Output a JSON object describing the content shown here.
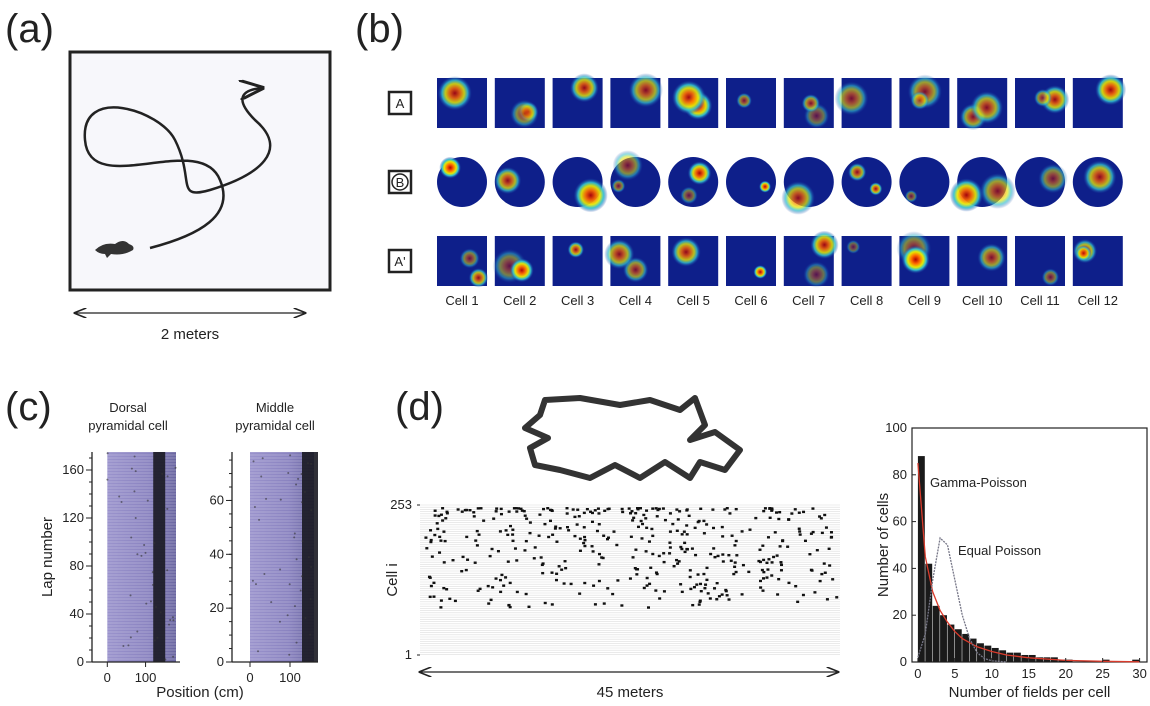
{
  "panels": {
    "a": {
      "label": "(a)",
      "scale": "2 meters"
    },
    "b": {
      "label": "(b)",
      "rows": [
        "A",
        "B",
        "A'"
      ],
      "cells": [
        "Cell 1",
        "Cell 2",
        "Cell 3",
        "Cell 4",
        "Cell 5",
        "Cell 6",
        "Cell 7",
        "Cell 8",
        "Cell 9",
        "Cell 10",
        "Cell 11",
        "Cell 12"
      ]
    },
    "c": {
      "label": "(c)",
      "xlabel": "Position (cm)"
    },
    "d": {
      "label": "(d)",
      "scale": "45 meters"
    }
  },
  "chart_data": [
    {
      "type": "raster",
      "title_lines": [
        "Dorsal",
        "pyramidal cell"
      ],
      "ylabel": "Lap number",
      "xlim": [
        -40,
        190
      ],
      "ylim": [
        0,
        175
      ],
      "xticks": [
        0,
        100
      ],
      "yticks": [
        0,
        40,
        80,
        120,
        160
      ]
    },
    {
      "type": "raster",
      "title_lines": [
        "Middle",
        "pyramidal cell"
      ],
      "xlim": [
        -45,
        170
      ],
      "ylim": [
        0,
        78
      ],
      "xticks": [
        0,
        100
      ],
      "yticks": [
        0,
        20,
        40,
        60
      ]
    },
    {
      "type": "raster",
      "ylabel": "Cell i",
      "ylim": [
        1,
        253
      ],
      "yticks": [
        1,
        253
      ]
    },
    {
      "type": "histogram",
      "xlabel": "Number of fields per cell",
      "ylabel": "Number of cells",
      "bins": [
        0,
        1,
        2,
        3,
        4,
        5,
        6,
        7,
        8,
        9,
        10,
        11,
        12,
        13,
        14,
        15,
        16,
        17,
        18,
        19,
        20,
        21,
        22,
        23,
        24,
        25,
        26,
        27,
        28,
        29,
        30,
        31
      ],
      "values": [
        88,
        42,
        24,
        20,
        16,
        14,
        12,
        10,
        8,
        7,
        6,
        5,
        4,
        4,
        3,
        3,
        2,
        2,
        2,
        1,
        1,
        0,
        0,
        0,
        0,
        1,
        0,
        0,
        0,
        1,
        0
      ],
      "color": "#1a1a1a",
      "series": [
        {
          "name": "Gamma-Poisson",
          "color": "#d93a2b",
          "x": [
            0,
            1,
            2,
            3,
            4,
            5,
            6,
            8,
            10,
            12,
            15,
            20,
            25,
            30
          ],
          "values": [
            85,
            45,
            30,
            22,
            17,
            13,
            10,
            6.5,
            4.5,
            3,
            1.8,
            0.7,
            0.3,
            0.1
          ]
        },
        {
          "name": "Equal Poisson",
          "color": "#777788",
          "x": [
            0,
            1,
            2,
            3,
            4,
            5,
            6,
            7,
            8,
            9,
            10,
            12
          ],
          "values": [
            2,
            12,
            35,
            53,
            50,
            35,
            20,
            10,
            4,
            1.5,
            0.5,
            0
          ]
        }
      ],
      "xlim": [
        -0.8,
        31
      ],
      "ylim": [
        0,
        100
      ],
      "xticks": [
        0,
        5,
        10,
        15,
        20,
        25,
        30
      ],
      "yticks": [
        0,
        20,
        40,
        60,
        80,
        100
      ]
    }
  ]
}
